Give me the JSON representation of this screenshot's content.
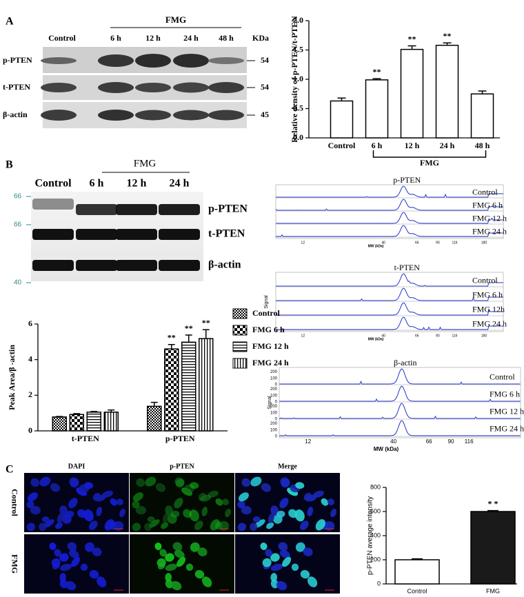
{
  "panel_labels": [
    "A",
    "B",
    "C"
  ],
  "western_blot": {
    "group_label": "FMG",
    "lanes": [
      "Control",
      "6 h",
      "12 h",
      "24 h",
      "48 h"
    ],
    "unit": "KDa",
    "rows": [
      {
        "label": "p-PTEN",
        "size": 54
      },
      {
        "label": "t-PTEN",
        "size": 54
      },
      {
        "label": "β-actin",
        "size": 45
      }
    ]
  },
  "wes_blot": {
    "group_label": "FMG",
    "lanes": [
      "Control",
      "6 h",
      "12 h",
      "24 h"
    ],
    "markers": [
      66,
      66,
      40
    ],
    "rows": [
      "p-PTEN",
      "t-PTEN",
      "β-actin"
    ]
  },
  "electropherograms": [
    {
      "title": "p-PTEN",
      "traces": [
        "Control",
        "FMG 6 h",
        "FMG 12 h",
        "FMG 24 h"
      ],
      "xlabel": "MW (kDa)",
      "xticks": [
        12,
        40,
        66,
        90,
        116,
        180
      ]
    },
    {
      "title": "t-PTEN",
      "traces": [
        "Control",
        "FMG 6 h",
        "FMG 12h",
        "FMG 24 h"
      ],
      "xlabel": "MW (kDa)",
      "ylabel": "Signal",
      "xticks": [
        12,
        40,
        66,
        90,
        116,
        180
      ]
    },
    {
      "title": "β-actin",
      "traces": [
        "Control",
        "FMG 6 h",
        "FMG 12 h",
        "FMG 24 h"
      ],
      "xlabel": "MW (kDa)",
      "ylabel": "Signal",
      "xticks": [
        12,
        40,
        66,
        90,
        116
      ],
      "trace_yticks": [
        200,
        100,
        0
      ]
    }
  ],
  "microscopy": {
    "columns": [
      "DAPI",
      "p-PTEN",
      "Merge"
    ],
    "rows": [
      "Control",
      "FMG"
    ]
  },
  "chart_data": [
    {
      "type": "bar",
      "categories": [
        "Control",
        "6 h",
        "12 h",
        "24 h",
        "48 h"
      ],
      "values": [
        0.63,
        0.99,
        1.51,
        1.58,
        0.75
      ],
      "errors": [
        0.05,
        0.02,
        0.06,
        0.04,
        0.05
      ],
      "significance": [
        null,
        "**",
        "**",
        "**",
        null
      ],
      "group_label": "FMG",
      "y_label": "Relative density of p-PTEN/t-PTEN",
      "color": "#ffffff",
      "ylim": [
        0,
        2
      ],
      "yticks": [
        {
          "value": 0,
          "label": "0.0"
        },
        {
          "value": 0.5,
          "label": "0.5"
        },
        {
          "value": 1,
          "label": "1.0"
        },
        {
          "value": 1.5,
          "label": "1.5"
        },
        {
          "value": 2,
          "label": "2.0"
        }
      ]
    },
    {
      "type": "bar",
      "categories": [
        "t-PTEN",
        "p-PTEN"
      ],
      "y_label": "Peak Area/β -actin",
      "legend": "right",
      "series": [
        {
          "name": "Control",
          "color": "#000000",
          "pattern": "checker",
          "values": [
            0.78,
            1.38
          ],
          "errors": [
            0.03,
            0.22
          ],
          "significance": [
            null,
            null
          ]
        },
        {
          "name": "FMG 6 h",
          "color": "#000000",
          "pattern": "checker-large",
          "values": [
            0.92,
            4.6
          ],
          "errors": [
            0.05,
            0.25
          ],
          "significance": [
            null,
            "**"
          ]
        },
        {
          "name": "FMG 12 h",
          "color": "#000000",
          "pattern": "hlines",
          "values": [
            1.05,
            4.98
          ],
          "errors": [
            0.04,
            0.4
          ],
          "significance": [
            null,
            "**"
          ]
        },
        {
          "name": "FMG 24 h",
          "color": "#000000",
          "pattern": "vlines",
          "values": [
            1.05,
            5.18
          ],
          "errors": [
            0.12,
            0.5
          ],
          "significance": [
            null,
            "**"
          ]
        }
      ],
      "ylim": [
        0,
        6
      ],
      "yticks": [
        0,
        2,
        4,
        6
      ]
    },
    {
      "type": "bar",
      "categories": [
        "Control",
        "FMG"
      ],
      "values": [
        200,
        600
      ],
      "errors": [
        8,
        8
      ],
      "significance": [
        null,
        "* *"
      ],
      "colors": [
        "#ffffff",
        "#1a1a1a"
      ],
      "y_label": "p-PTEN average intensity",
      "ylim": [
        0,
        800
      ],
      "yticks": [
        0,
        200,
        400,
        600,
        800
      ]
    }
  ]
}
